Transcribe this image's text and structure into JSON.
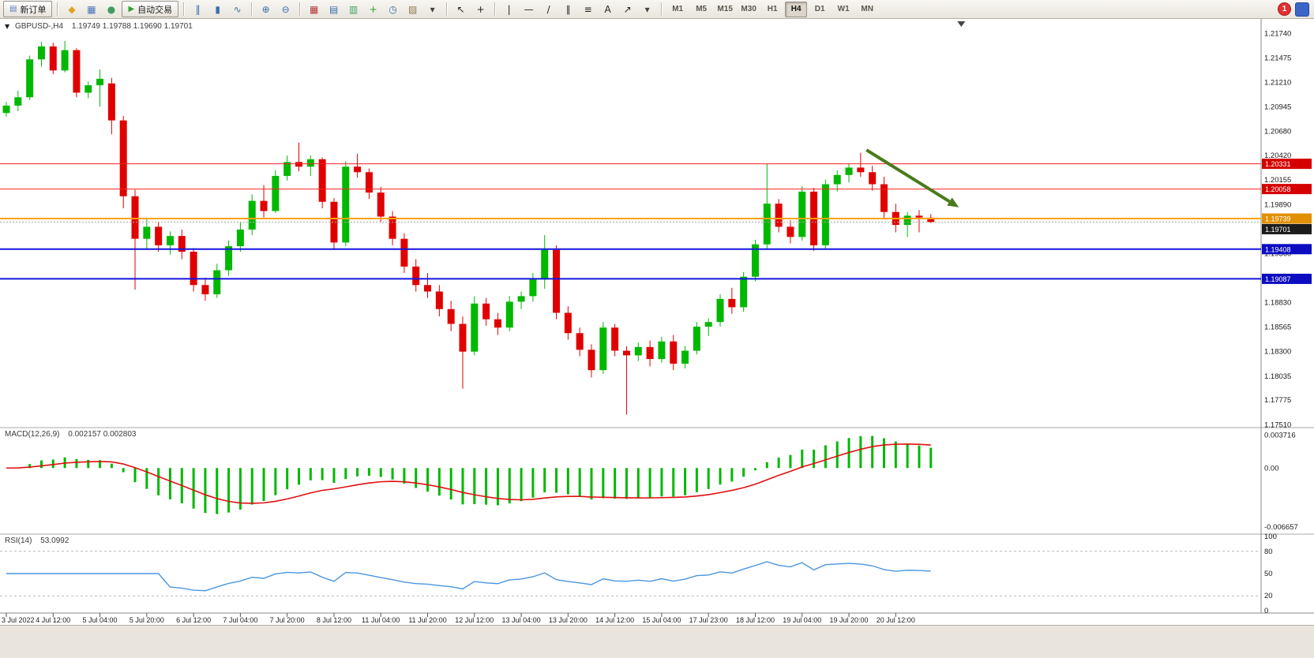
{
  "app": {
    "background": "#e9e5dd"
  },
  "toolbar": {
    "notification_count": "1",
    "groups": [
      {
        "items": [
          {
            "kind": "labeled",
            "name": "new-order-button",
            "glyph": "▤",
            "glyph_color": "#5a78c0",
            "label": "新订单"
          }
        ]
      },
      {
        "items": [
          {
            "kind": "icon",
            "name": "metaeditor-icon",
            "glyph": "◆",
            "color": "#dca520"
          },
          {
            "kind": "icon",
            "name": "market-watch-icon",
            "glyph": "▦",
            "color": "#4a72b8"
          },
          {
            "kind": "icon",
            "name": "data-window-icon",
            "glyph": "●",
            "color": "#3f9e5f"
          },
          {
            "kind": "labeled",
            "name": "autotrading-button",
            "glyph": "▶",
            "glyph_color": "#2fa12f",
            "label": "自动交易"
          }
        ]
      },
      {
        "items": [
          {
            "kind": "icon",
            "name": "bar-chart-mode-icon",
            "glyph": "‖",
            "color": "#3a6fae"
          },
          {
            "kind": "icon",
            "name": "candlestick-mode-icon",
            "glyph": "▮",
            "color": "#3a6fae"
          },
          {
            "kind": "icon",
            "name": "line-chart-mode-icon",
            "glyph": "∿",
            "color": "#3a6fae"
          }
        ]
      },
      {
        "items": [
          {
            "kind": "icon",
            "name": "zoom-in-icon",
            "glyph": "⊕",
            "color": "#3a6fae"
          },
          {
            "kind": "icon",
            "name": "zoom-out-icon",
            "glyph": "⊖",
            "color": "#3a6fae"
          }
        ]
      },
      {
        "items": [
          {
            "kind": "icon",
            "name": "tile-windows-icon",
            "glyph": "▦",
            "color": "#b03a3a"
          },
          {
            "kind": "icon",
            "name": "cascade-windows-icon",
            "glyph": "▤",
            "color": "#3a6fae"
          },
          {
            "kind": "icon",
            "name": "tile-horizontally-icon",
            "glyph": "▥",
            "color": "#3f9e5f"
          },
          {
            "kind": "icon",
            "name": "indicators-add-icon",
            "glyph": "+",
            "color": "#2fa12f"
          },
          {
            "kind": "icon",
            "name": "periods-icon",
            "glyph": "◷",
            "color": "#3a6fae"
          },
          {
            "kind": "icon",
            "name": "templates-icon",
            "glyph": "▨",
            "color": "#8a7a50"
          },
          {
            "kind": "icon",
            "name": "templates-caret-icon",
            "glyph": "▾",
            "color": "#444444"
          }
        ]
      },
      {
        "items": [
          {
            "kind": "icon",
            "name": "cursor-tool-icon",
            "glyph": "↖",
            "color": "#222222"
          },
          {
            "kind": "icon",
            "name": "crosshair-tool-icon",
            "glyph": "+",
            "color": "#222222"
          }
        ]
      },
      {
        "items": [
          {
            "kind": "icon",
            "name": "vertical-line-tool-icon",
            "glyph": "|",
            "color": "#222222"
          },
          {
            "kind": "icon",
            "name": "horizontal-line-tool-icon",
            "glyph": "—",
            "color": "#222222"
          },
          {
            "kind": "icon",
            "name": "trendline-tool-icon",
            "glyph": "/",
            "color": "#222222"
          },
          {
            "kind": "icon",
            "name": "channel-tool-icon",
            "glyph": "∥",
            "color": "#222222"
          },
          {
            "kind": "icon",
            "name": "fibonacci-tool-icon",
            "glyph": "≡",
            "color": "#222222"
          },
          {
            "kind": "icon",
            "name": "text-tool-icon",
            "glyph": "A",
            "color": "#222222"
          },
          {
            "kind": "icon",
            "name": "arrows-tool-icon",
            "glyph": "↗",
            "color": "#222222"
          },
          {
            "kind": "icon",
            "name": "shapes-caret-icon",
            "glyph": "▾",
            "color": "#444444"
          }
        ]
      },
      {
        "items": [
          {
            "kind": "tf",
            "name": "timeframe-m1-button",
            "label": "M1"
          },
          {
            "kind": "tf",
            "name": "timeframe-m5-button",
            "label": "M5"
          },
          {
            "kind": "tf",
            "name": "timeframe-m15-button",
            "label": "M15"
          },
          {
            "kind": "tf",
            "name": "timeframe-m30-button",
            "label": "M30"
          },
          {
            "kind": "tf",
            "name": "timeframe-h1-button",
            "label": "H1"
          },
          {
            "kind": "tf",
            "name": "timeframe-h4-button",
            "label": "H4",
            "active": true
          },
          {
            "kind": "tf",
            "name": "timeframe-d1-button",
            "label": "D1"
          },
          {
            "kind": "tf",
            "name": "timeframe-w1-button",
            "label": "W1"
          },
          {
            "kind": "tf",
            "name": "timeframe-mn-button",
            "label": "MN"
          }
        ]
      }
    ]
  },
  "chart_header": {
    "expander": "▼",
    "symbol_period": "GBPUSD-,H4",
    "ohlc": "1.19749 1.19788 1.19690 1.19701"
  },
  "chart_data": {
    "type": "candlestick",
    "symbol": "GBPUSD-",
    "timeframe": "H4",
    "up_color": "#00b800",
    "down_color": "#e00000",
    "ylim": [
      1.175,
      1.2188
    ],
    "price_axis_labels": [
      "1.21740",
      "1.21475",
      "1.21210",
      "1.20945",
      "1.20680",
      "1.20420",
      "1.20155",
      "1.19890",
      "1.19625",
      "1.19360",
      "1.19095",
      "1.18830",
      "1.18565",
      "1.18300",
      "1.18035",
      "1.17775",
      "1.17510"
    ],
    "ohlc": [
      [
        1.2088,
        1.21,
        1.2084,
        1.2096
      ],
      [
        1.2096,
        1.2112,
        1.209,
        1.2105
      ],
      [
        1.2105,
        1.215,
        1.2102,
        1.2146
      ],
      [
        1.2146,
        1.2165,
        1.2138,
        1.216
      ],
      [
        1.216,
        1.2164,
        1.213,
        1.2134
      ],
      [
        1.2134,
        1.2166,
        1.2132,
        1.2156
      ],
      [
        1.2156,
        1.2158,
        1.2105,
        1.211
      ],
      [
        1.211,
        1.2122,
        1.2104,
        1.2118
      ],
      [
        1.2118,
        1.2135,
        1.2095,
        1.2125
      ],
      [
        1.212,
        1.2126,
        1.2065,
        1.208
      ],
      [
        1.208,
        1.2085,
        1.1985,
        1.1998
      ],
      [
        1.1998,
        1.2005,
        1.1897,
        1.1952
      ],
      [
        1.1952,
        1.1975,
        1.194,
        1.1965
      ],
      [
        1.1965,
        1.197,
        1.1938,
        1.1945
      ],
      [
        1.1945,
        1.196,
        1.1935,
        1.1955
      ],
      [
        1.1955,
        1.1962,
        1.193,
        1.1938
      ],
      [
        1.1938,
        1.1942,
        1.1895,
        1.1902
      ],
      [
        1.1902,
        1.191,
        1.1885,
        1.1892
      ],
      [
        1.1892,
        1.1925,
        1.1888,
        1.1918
      ],
      [
        1.1918,
        1.195,
        1.1912,
        1.1944
      ],
      [
        1.1944,
        1.197,
        1.1938,
        1.1962
      ],
      [
        1.1962,
        1.2,
        1.1956,
        1.1993
      ],
      [
        1.1993,
        1.201,
        1.1975,
        1.1982
      ],
      [
        1.1982,
        1.2026,
        1.198,
        1.202
      ],
      [
        1.202,
        1.2042,
        1.2015,
        1.2035
      ],
      [
        1.2035,
        1.2056,
        1.2025,
        1.203
      ],
      [
        1.203,
        1.2042,
        1.202,
        1.2038
      ],
      [
        1.2038,
        1.204,
        1.1985,
        1.1992
      ],
      [
        1.1992,
        1.1996,
        1.194,
        1.1948
      ],
      [
        1.1948,
        1.2036,
        1.1944,
        1.203
      ],
      [
        1.203,
        1.2044,
        1.2018,
        1.2024
      ],
      [
        1.2024,
        1.2028,
        1.1995,
        1.2002
      ],
      [
        1.2002,
        1.2008,
        1.197,
        1.1976
      ],
      [
        1.1976,
        1.1982,
        1.1945,
        1.1952
      ],
      [
        1.1952,
        1.1958,
        1.1915,
        1.1922
      ],
      [
        1.1922,
        1.193,
        1.1895,
        1.1902
      ],
      [
        1.1902,
        1.1915,
        1.1888,
        1.1895
      ],
      [
        1.1895,
        1.1902,
        1.1868,
        1.1876
      ],
      [
        1.1876,
        1.1885,
        1.1852,
        1.186
      ],
      [
        1.186,
        1.1868,
        1.179,
        1.183
      ],
      [
        1.183,
        1.189,
        1.1826,
        1.1882
      ],
      [
        1.1882,
        1.1888,
        1.1858,
        1.1865
      ],
      [
        1.1865,
        1.1872,
        1.1848,
        1.1856
      ],
      [
        1.1856,
        1.189,
        1.1852,
        1.1884
      ],
      [
        1.1884,
        1.1895,
        1.1876,
        1.189
      ],
      [
        1.189,
        1.1915,
        1.1884,
        1.1908
      ],
      [
        1.1908,
        1.1956,
        1.1898,
        1.194
      ],
      [
        1.194,
        1.1945,
        1.1865,
        1.1872
      ],
      [
        1.1872,
        1.1879,
        1.1843,
        1.185
      ],
      [
        1.185,
        1.1856,
        1.1825,
        1.1832
      ],
      [
        1.1832,
        1.1838,
        1.1802,
        1.181
      ],
      [
        1.181,
        1.1862,
        1.1806,
        1.1856
      ],
      [
        1.1856,
        1.186,
        1.1825,
        1.1831
      ],
      [
        1.1831,
        1.1836,
        1.1762,
        1.1826
      ],
      [
        1.1826,
        1.184,
        1.182,
        1.1835
      ],
      [
        1.1835,
        1.1842,
        1.1814,
        1.1822
      ],
      [
        1.1822,
        1.1846,
        1.1818,
        1.1841
      ],
      [
        1.1841,
        1.1848,
        1.181,
        1.1817
      ],
      [
        1.1817,
        1.1836,
        1.1812,
        1.1831
      ],
      [
        1.1831,
        1.1862,
        1.1827,
        1.1857
      ],
      [
        1.1857,
        1.1866,
        1.1847,
        1.1862
      ],
      [
        1.1862,
        1.1892,
        1.1857,
        1.1887
      ],
      [
        1.1887,
        1.1899,
        1.1871,
        1.1878
      ],
      [
        1.1878,
        1.1916,
        1.1873,
        1.1911
      ],
      [
        1.1911,
        1.1951,
        1.1906,
        1.1946
      ],
      [
        1.1946,
        1.2033,
        1.1941,
        1.199
      ],
      [
        1.199,
        1.1995,
        1.1959,
        1.1965
      ],
      [
        1.1965,
        1.1972,
        1.1947,
        1.1954
      ],
      [
        1.1954,
        1.2009,
        1.195,
        1.2003
      ],
      [
        1.2003,
        1.2007,
        1.1939,
        1.1945
      ],
      [
        1.1945,
        1.2016,
        1.1941,
        1.2011
      ],
      [
        1.2011,
        1.2026,
        1.2003,
        1.2021
      ],
      [
        1.2021,
        1.2033,
        1.2013,
        1.2029
      ],
      [
        1.2029,
        1.2045,
        1.2019,
        1.2024
      ],
      [
        1.2024,
        1.2031,
        1.2004,
        1.2011
      ],
      [
        1.2011,
        1.2019,
        1.1974,
        1.1981
      ],
      [
        1.1981,
        1.199,
        1.1959,
        1.1967
      ],
      [
        1.1967,
        1.1981,
        1.1954,
        1.1977
      ],
      [
        1.1977,
        1.1983,
        1.1959,
        1.1975
      ],
      [
        1.19749,
        1.19788,
        1.1969,
        1.19701
      ]
    ],
    "time_labels": [
      {
        "i": 0,
        "t": "3 Jul 2022"
      },
      {
        "i": 4,
        "t": "4 Jul 12:00"
      },
      {
        "i": 8,
        "t": "5 Jul 04:00"
      },
      {
        "i": 12,
        "t": "5 Jul 20:00"
      },
      {
        "i": 16,
        "t": "6 Jul 12:00"
      },
      {
        "i": 20,
        "t": "7 Jul 04:00"
      },
      {
        "i": 24,
        "t": "7 Jul 20:00"
      },
      {
        "i": 28,
        "t": "8 Jul 12:00"
      },
      {
        "i": 32,
        "t": "11 Jul 04:00"
      },
      {
        "i": 36,
        "t": "11 Jul 20:00"
      },
      {
        "i": 40,
        "t": "12 Jul 12:00"
      },
      {
        "i": 44,
        "t": "13 Jul 04:00"
      },
      {
        "i": 48,
        "t": "13 Jul 20:00"
      },
      {
        "i": 52,
        "t": "14 Jul 12:00"
      },
      {
        "i": 56,
        "t": "15 Jul 04:00"
      },
      {
        "i": 60,
        "t": "17 Jul 23:00"
      },
      {
        "i": 64,
        "t": "18 Jul 12:00"
      },
      {
        "i": 68,
        "t": "19 Jul 04:00"
      },
      {
        "i": 72,
        "t": "19 Jul 20:00"
      },
      {
        "i": 76,
        "t": "20 Jul 12:00"
      }
    ],
    "hlines": [
      {
        "value": 1.20331,
        "label": "1.20331",
        "color": "#ff2020",
        "tag_bg": "#d40000",
        "width": 1
      },
      {
        "value": 1.20058,
        "label": "1.20058",
        "color": "#ff2020",
        "tag_bg": "#d40000",
        "width": 1
      },
      {
        "value": 1.19739,
        "label": "1.19739",
        "color": "#ffa200",
        "tag_bg": "#e09000",
        "width": 2
      },
      {
        "value": 1.19408,
        "label": "1.19408",
        "color": "#1515e0",
        "tag_bg": "#0c0cc0",
        "width": 2
      },
      {
        "value": 1.19087,
        "label": "1.19087",
        "color": "#1515e0",
        "tag_bg": "#0c0cc0",
        "width": 2
      }
    ],
    "bid": {
      "price": 1.19701,
      "label": "1.19701",
      "tag_bg": "#1c1c1c"
    },
    "trend_arrow": {
      "from_index": 73.5,
      "from_price": 1.2048,
      "to_index": 81.4,
      "to_price": 1.1986,
      "color": "#4b7a1d"
    },
    "shift_marker_index": 81.6,
    "indicators": {
      "macd": {
        "name": "MACD(12,26,9)",
        "values_text": "0.002157 0.002803",
        "params": [
          12,
          26,
          9
        ],
        "axis_labels": [
          "0.003716",
          "0.00",
          "-0.006657"
        ],
        "range_top": 0.0042,
        "range_bottom": -0.007,
        "histogram_color": "#00b800",
        "signal_color": "#e01010"
      },
      "rsi": {
        "name": "RSI(14)",
        "value": "53.0992",
        "period": 14,
        "axis_labels": [
          [
            100,
            "100"
          ],
          [
            80,
            "80"
          ],
          [
            50,
            "50"
          ],
          [
            20,
            "20"
          ],
          [
            0,
            "0"
          ]
        ],
        "levels": [
          80,
          20
        ],
        "line_color": "#4b96e0"
      }
    }
  }
}
